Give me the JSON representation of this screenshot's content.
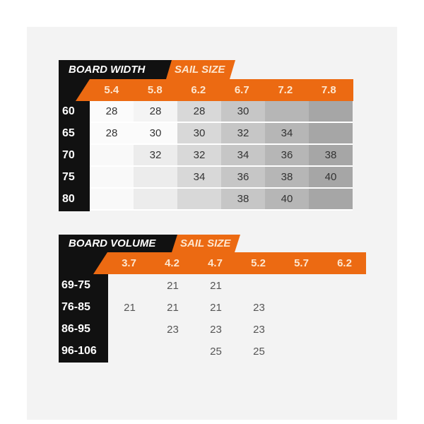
{
  "width_table": {
    "row_header": "BOARD WIDTH",
    "col_header": "SAIL SIZE",
    "sail_sizes": [
      "5.4",
      "5.8",
      "6.2",
      "6.7",
      "7.2",
      "7.8"
    ],
    "rows": [
      {
        "label": "60",
        "values": [
          "28",
          "28",
          "28",
          "30",
          "",
          ""
        ]
      },
      {
        "label": "65",
        "values": [
          "28",
          "30",
          "30",
          "32",
          "34",
          ""
        ]
      },
      {
        "label": "70",
        "values": [
          "",
          "32",
          "32",
          "34",
          "36",
          "38"
        ]
      },
      {
        "label": "75",
        "values": [
          "",
          "",
          "34",
          "36",
          "38",
          "40"
        ]
      },
      {
        "label": "80",
        "values": [
          "",
          "",
          "",
          "38",
          "40",
          ""
        ]
      }
    ]
  },
  "volume_table": {
    "row_header": "BOARD VOLUME",
    "col_header": "SAIL SIZE",
    "sail_sizes": [
      "3.7",
      "4.2",
      "4.7",
      "5.2",
      "5.7",
      "6.2"
    ],
    "rows": [
      {
        "label": "69-75",
        "values": [
          "",
          "21",
          "21",
          "",
          "",
          ""
        ]
      },
      {
        "label": "76-85",
        "values": [
          "21",
          "21",
          "21",
          "23",
          "",
          ""
        ]
      },
      {
        "label": "86-95",
        "values": [
          "",
          "23",
          "23",
          "23",
          "",
          ""
        ]
      },
      {
        "label": "96-106",
        "values": [
          "",
          "",
          "25",
          "25",
          "",
          ""
        ]
      }
    ]
  },
  "colors": {
    "orange": "#ec6a12",
    "black": "#111111"
  }
}
